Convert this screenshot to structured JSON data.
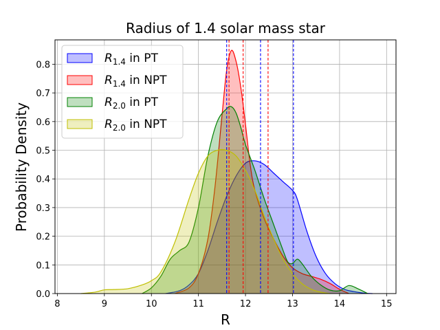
{
  "chart_data": {
    "type": "area",
    "title": "Radius of 1.4 solar mass star",
    "xlabel": "R",
    "ylabel": "Probability Density",
    "xlim": [
      7.95,
      15.2
    ],
    "ylim": [
      0,
      0.885
    ],
    "xticks": [
      8,
      9,
      10,
      11,
      12,
      13,
      14,
      15
    ],
    "yticks": [
      0.0,
      0.1,
      0.2,
      0.3,
      0.4,
      0.5,
      0.6,
      0.7,
      0.8
    ],
    "grid": true,
    "legend_position": "top-left",
    "series": [
      {
        "name": "R1.4 in PT",
        "legend": {
          "base": "R",
          "sub": "1.4",
          "suffix": " in PT"
        },
        "line_color": "#0000ff",
        "fill_color": "rgba(0,0,255,0.25)",
        "x": [
          10.3,
          10.6,
          10.8,
          11.0,
          11.2,
          11.4,
          11.6,
          11.8,
          12.0,
          12.2,
          12.4,
          12.6,
          12.8,
          13.0,
          13.1,
          13.3,
          13.5,
          13.7,
          13.9,
          14.1,
          14.3,
          14.5,
          14.7
        ],
        "y": [
          0.0,
          0.01,
          0.03,
          0.07,
          0.15,
          0.25,
          0.34,
          0.41,
          0.455,
          0.463,
          0.45,
          0.42,
          0.39,
          0.36,
          0.33,
          0.22,
          0.13,
          0.07,
          0.035,
          0.015,
          0.007,
          0.002,
          0.0
        ],
        "markers": [
          11.6,
          12.32,
          13.02
        ]
      },
      {
        "name": "R1.4 in NPT",
        "legend": {
          "base": "R",
          "sub": "1.4",
          "suffix": " in NPT"
        },
        "line_color": "#ff0000",
        "fill_color": "rgba(255,0,0,0.25)",
        "x": [
          10.5,
          10.8,
          11.0,
          11.2,
          11.35,
          11.5,
          11.6,
          11.7,
          11.8,
          11.9,
          12.0,
          12.1,
          12.2,
          12.4,
          12.6,
          12.8,
          13.0,
          13.2,
          13.4,
          13.6,
          13.8,
          14.0,
          14.2
        ],
        "y": [
          0.0,
          0.02,
          0.07,
          0.19,
          0.37,
          0.62,
          0.78,
          0.848,
          0.81,
          0.72,
          0.59,
          0.45,
          0.36,
          0.26,
          0.19,
          0.13,
          0.09,
          0.07,
          0.06,
          0.05,
          0.035,
          0.015,
          0.0
        ],
        "markers": [
          11.65,
          11.95,
          12.48
        ]
      },
      {
        "name": "R2.0 in PT",
        "legend": {
          "base": "R",
          "sub": "2.0",
          "suffix": " in PT"
        },
        "line_color": "#008000",
        "fill_color": "rgba(0,128,0,0.25)",
        "x": [
          9.8,
          10.0,
          10.2,
          10.4,
          10.6,
          10.8,
          11.0,
          11.2,
          11.4,
          11.6,
          11.7,
          11.8,
          11.9,
          12.0,
          12.2,
          12.4,
          12.6,
          12.8,
          12.9,
          13.0,
          13.1,
          13.2,
          13.4,
          13.6,
          13.8,
          14.0,
          14.2,
          14.4,
          14.6
        ],
        "y": [
          0.0,
          0.02,
          0.06,
          0.12,
          0.15,
          0.18,
          0.3,
          0.48,
          0.6,
          0.645,
          0.652,
          0.63,
          0.58,
          0.52,
          0.43,
          0.33,
          0.24,
          0.15,
          0.11,
          0.105,
          0.12,
          0.105,
          0.06,
          0.03,
          0.012,
          0.01,
          0.028,
          0.016,
          0.0
        ]
      },
      {
        "name": "R2.0 in NPT",
        "legend": {
          "base": "R",
          "sub": "2.0",
          "suffix": " in NPT"
        },
        "line_color": "#bfbf00",
        "fill_color": "rgba(191,191,0,0.25)",
        "x": [
          8.5,
          8.8,
          9.0,
          9.2,
          9.5,
          9.8,
          10.0,
          10.2,
          10.5,
          10.8,
          11.0,
          11.2,
          11.4,
          11.6,
          11.8,
          12.0,
          12.2,
          12.4,
          12.6,
          12.8,
          13.0,
          13.2,
          13.4,
          13.6,
          13.8
        ],
        "y": [
          0.0,
          0.005,
          0.013,
          0.014,
          0.017,
          0.03,
          0.045,
          0.075,
          0.18,
          0.33,
          0.42,
          0.48,
          0.5,
          0.5,
          0.48,
          0.43,
          0.36,
          0.27,
          0.19,
          0.12,
          0.07,
          0.035,
          0.015,
          0.005,
          0.0
        ]
      }
    ]
  }
}
